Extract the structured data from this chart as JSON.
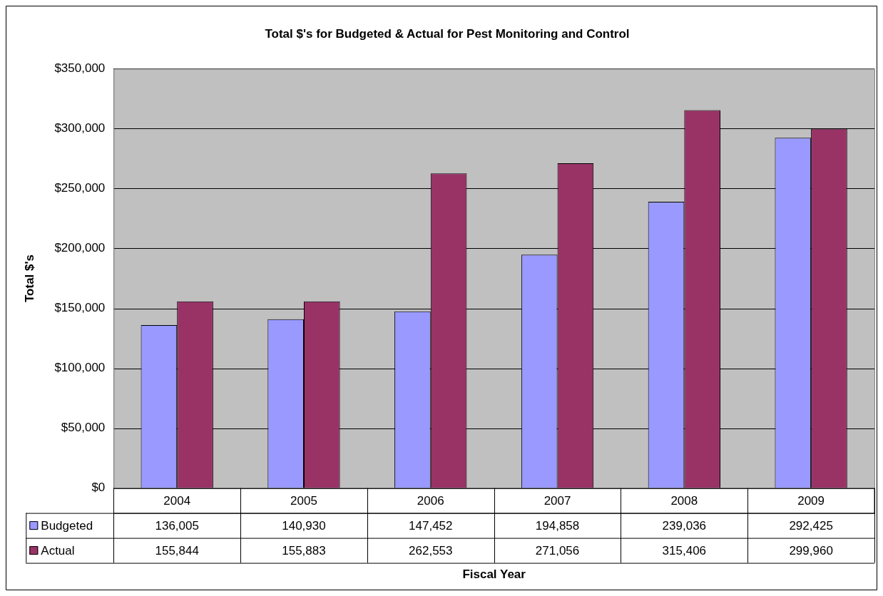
{
  "chart_data": {
    "type": "bar",
    "title": "Total $'s for Budgeted & Actual for Pest Monitoring and Control",
    "xlabel": "Fiscal Year",
    "ylabel": "Total $'s",
    "categories": [
      "2004",
      "2005",
      "2006",
      "2007",
      "2008",
      "2009"
    ],
    "series": [
      {
        "name": "Budgeted",
        "color": "#9999ff",
        "values": [
          136005,
          140930,
          147452,
          194858,
          239036,
          292425
        ],
        "value_labels": [
          "136,005",
          "140,930",
          "147,452",
          "194,858",
          "239,036",
          "292,425"
        ]
      },
      {
        "name": "Actual",
        "color": "#993366",
        "values": [
          155844,
          155883,
          262553,
          271056,
          315406,
          299960
        ],
        "value_labels": [
          "155,844",
          "155,883",
          "262,553",
          "271,056",
          "315,406",
          "299,960"
        ]
      }
    ],
    "ylim": [
      0,
      350000
    ],
    "yticks": [
      {
        "value": 0,
        "label": "$0"
      },
      {
        "value": 50000,
        "label": "$50,000"
      },
      {
        "value": 100000,
        "label": "$100,000"
      },
      {
        "value": 150000,
        "label": "$150,000"
      },
      {
        "value": 200000,
        "label": "$200,000"
      },
      {
        "value": 250000,
        "label": "$250,000"
      },
      {
        "value": 300000,
        "label": "$300,000"
      },
      {
        "value": 350000,
        "label": "$350,000"
      }
    ],
    "grid": "y",
    "legend": "bottom"
  }
}
